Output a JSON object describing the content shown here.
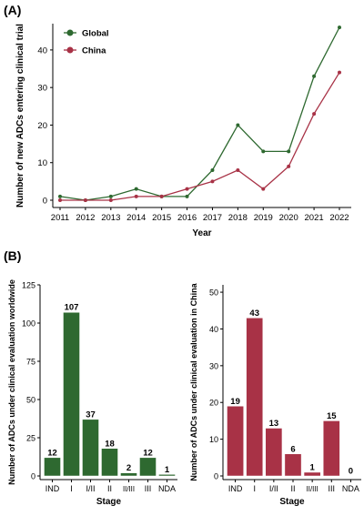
{
  "panels": {
    "a_label": "(A)",
    "b_label": "(B)"
  },
  "colors": {
    "global": "#2e6930",
    "china": "#a83246",
    "axis": "#000000"
  },
  "chart_data": [
    {
      "type": "line",
      "title": "",
      "xlabel": "Year",
      "ylabel": "Number of new ADCs entering clinical trial",
      "x": [
        2011,
        2012,
        2013,
        2014,
        2015,
        2016,
        2017,
        2018,
        2019,
        2020,
        2021,
        2022
      ],
      "ylim": [
        0,
        47
      ],
      "yticks": [
        0,
        10,
        20,
        30,
        40
      ],
      "legend": "top-left",
      "grid": false,
      "series": [
        {
          "name": "Global",
          "color": "#2e6930",
          "values": [
            1,
            0,
            1,
            3,
            1,
            1,
            8,
            20,
            13,
            13,
            33,
            46
          ]
        },
        {
          "name": "China",
          "color": "#a83246",
          "values": [
            0,
            0,
            0,
            1,
            1,
            3,
            5,
            8,
            3,
            9,
            23,
            34
          ]
        }
      ]
    },
    {
      "type": "bar",
      "title": "",
      "xlabel": "Stage",
      "ylabel": "Number of ADCs under clinical evaluation worldwide",
      "categories": [
        "IND",
        "I",
        "I/II",
        "II",
        "II/III",
        "III",
        "NDA"
      ],
      "values": [
        12,
        107,
        37,
        18,
        2,
        12,
        1
      ],
      "ylim": [
        0,
        125
      ],
      "yticks": [
        0,
        25,
        50,
        75,
        100,
        125
      ],
      "color": "#2e6930",
      "grid": false
    },
    {
      "type": "bar",
      "title": "",
      "xlabel": "Stage",
      "ylabel": "Number of ADCs under clinical evaluation in China",
      "categories": [
        "IND",
        "I",
        "I/II",
        "II",
        "II/III",
        "III",
        "NDA"
      ],
      "values": [
        19,
        43,
        13,
        6,
        1,
        15,
        0
      ],
      "ylim": [
        0,
        52
      ],
      "yticks": [
        0,
        10,
        20,
        30,
        40,
        50
      ],
      "color": "#a83246",
      "grid": false
    }
  ]
}
